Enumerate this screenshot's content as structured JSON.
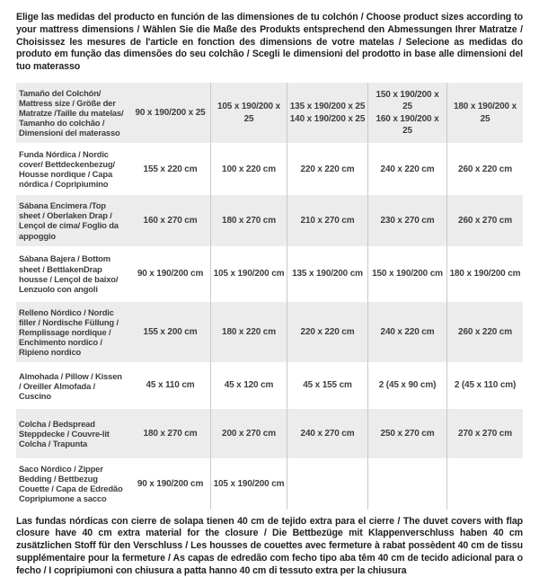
{
  "intro": "Elige las medidas del producto en función de las dimensiones de tu colchón / Choose product sizes according to your mattress dimensions / Wählen Sie die Maße des Produkts entsprechend den Abmessungen Ihrer Matratze / Choisissez les mesures de l'article en fonction des dimensions de votre matelas / Selecione as medidas do produto em função das dimensões do seu colchão / Scegli le dimensioni del prodotto in base alle dimensioni del tuo materasso",
  "footnote": "Las fundas nórdicas con cierre de solapa tienen 40 cm de tejido extra para el cierre  /  The duvet covers with flap closure have 40 cm extra material for the closure / Die Bettbezüge mit Klappenverschluss haben 40 cm zusätzlichen Stoff für den Verschluss / Les housses de couettes avec fermeture à rabat possèdent 40 cm de tissu supplémentaire pour la fermeture / As capas de edredão com fecho tipo aba têm 40 cm de tecido adicional para o fecho / I copripiumoni con chiusura a patta hanno 40 cm di tessuto extra per la chiusura",
  "colors": {
    "row_shade": "#ececec",
    "divider": "#c9c9c9",
    "table_text": "#3e3e3e",
    "body_text": "#1f1f1f"
  },
  "table": {
    "rows": [
      {
        "label": "Tamaño del Colchón/ Mattress size / Größe der Matratze /Taille du matelas/ Tamanho do colchão / Dimensioni del materasso",
        "values": [
          "90 x 190/200 x 25",
          "105 x 190/200 x 25",
          "135 x 190/200 x 25\n140 x 190/200 x 25",
          "150 x 190/200 x 25\n160 x 190/200 x 25",
          "180 x 190/200 x 25"
        ]
      },
      {
        "label": "Funda Nórdica /  Nordic cover/ Bettdeckenbezug/ Housse nordique  / Capa nórdica / Copripiumino",
        "values": [
          "155 x 220 cm",
          "100 x 220 cm",
          "220 x 220 cm",
          "240 x 220 cm",
          "260 x 220 cm"
        ]
      },
      {
        "label": "Sábana Encimera /Top sheet / Oberlaken Drap / Lençol de cima/ Foglio da appoggio",
        "values": [
          "160 x 270 cm",
          "180 x 270 cm",
          "210 x 270 cm",
          "230 x 270 cm",
          "260 x 270 cm"
        ]
      },
      {
        "label": "Sábana Bajera / Bottom sheet / BettlakenDrap housse / Lençol de baixo/ Lenzuolo con angoli",
        "values": [
          "90 x 190/200 cm",
          "105 x 190/200 cm",
          "135 x 190/200 cm",
          "150 x 190/200 cm",
          "180 x 190/200 cm"
        ]
      },
      {
        "label": "Relleno Nórdico / Nordic filler / Nordische Füllung / Remplissage nordique / Enchimento nordico / Ripieno nordico",
        "values": [
          "155 x 200 cm",
          "180 x 220 cm",
          "220 x 220 cm",
          "240 x 220 cm",
          "260 x 220 cm"
        ]
      },
      {
        "label": "Almohada  / Pillow / Kissen / Oreiller Almofada / Cuscino",
        "values": [
          "45 x 110 cm",
          "45 x 120 cm",
          "45 x 155 cm",
          "2 (45 x 90 cm)",
          "2 (45 x 110 cm)"
        ]
      },
      {
        "label": "Colcha / Bedspread Steppdecke / Couvre-lit Colcha / Trapunta",
        "values": [
          "180 x 270 cm",
          "200 x 270 cm",
          "240 x 270 cm",
          "250 x 270 cm",
          "270 x 270 cm"
        ]
      },
      {
        "label": "Saco Nórdico / Zipper Bedding / Bettbezug Couette  / Capa de Edredão Copripiumone a sacco",
        "values": [
          "90 x 190/200 cm",
          "105 x 190/200 cm",
          "",
          "",
          ""
        ]
      }
    ]
  }
}
